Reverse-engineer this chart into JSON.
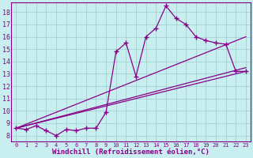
{
  "xlabel": "Windchill (Refroidissement éolien,°C)",
  "bg_color": "#c8eef0",
  "line_color": "#880088",
  "grid_color": "#99cccc",
  "xlim": [
    -0.5,
    23.5
  ],
  "ylim": [
    7.5,
    18.8
  ],
  "xticks": [
    0,
    1,
    2,
    3,
    4,
    5,
    6,
    7,
    8,
    9,
    10,
    11,
    12,
    13,
    14,
    15,
    16,
    17,
    18,
    19,
    20,
    21,
    22,
    23
  ],
  "yticks": [
    8,
    9,
    10,
    11,
    12,
    13,
    14,
    15,
    16,
    17,
    18
  ],
  "data_x": [
    0,
    1,
    2,
    3,
    4,
    5,
    6,
    7,
    8,
    9,
    10,
    11,
    12,
    13,
    14,
    15,
    16,
    17,
    18,
    19,
    20,
    21,
    22,
    23
  ],
  "data_y": [
    8.6,
    8.5,
    8.8,
    8.4,
    8.0,
    8.5,
    8.4,
    8.6,
    8.6,
    9.9,
    14.8,
    15.5,
    12.8,
    16.0,
    16.7,
    18.5,
    17.5,
    17.0,
    16.0,
    15.7,
    15.5,
    15.4,
    13.2,
    13.2
  ],
  "trend_lines": [
    {
      "x": [
        0,
        23
      ],
      "y": [
        8.6,
        16.0
      ]
    },
    {
      "x": [
        0,
        23
      ],
      "y": [
        8.6,
        13.5
      ]
    },
    {
      "x": [
        0,
        23
      ],
      "y": [
        8.6,
        13.2
      ]
    }
  ]
}
